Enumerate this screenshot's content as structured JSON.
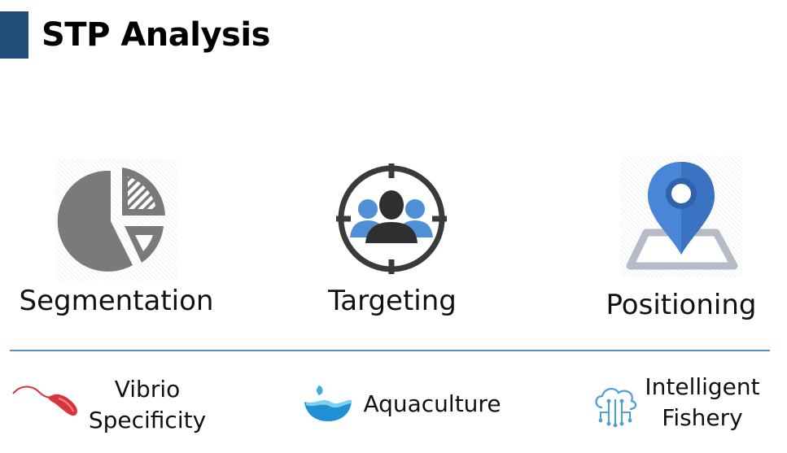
{
  "title": "STP Analysis",
  "pillars": [
    {
      "label": "Segmentation",
      "icon": "pie-chart-icon"
    },
    {
      "label": "Targeting",
      "icon": "target-audience-icon"
    },
    {
      "label": "Positioning",
      "icon": "map-pin-icon"
    }
  ],
  "features": [
    {
      "line1": "Vibrio",
      "line2": "Specificity",
      "icon": "bacterium-icon"
    },
    {
      "line1": "Aquaculture",
      "icon": "water-wave-icon"
    },
    {
      "line1": "Intelligent",
      "line2": "Fishery",
      "icon": "cloud-network-icon"
    }
  ],
  "colors": {
    "accent": "#1f4e79",
    "divider": "#5b8fbd",
    "icon_gray": "#7a7a7a",
    "icon_blue": "#4f8fd6",
    "pin_blue": "#4a86d8",
    "bacterium_red": "#d8343a"
  }
}
